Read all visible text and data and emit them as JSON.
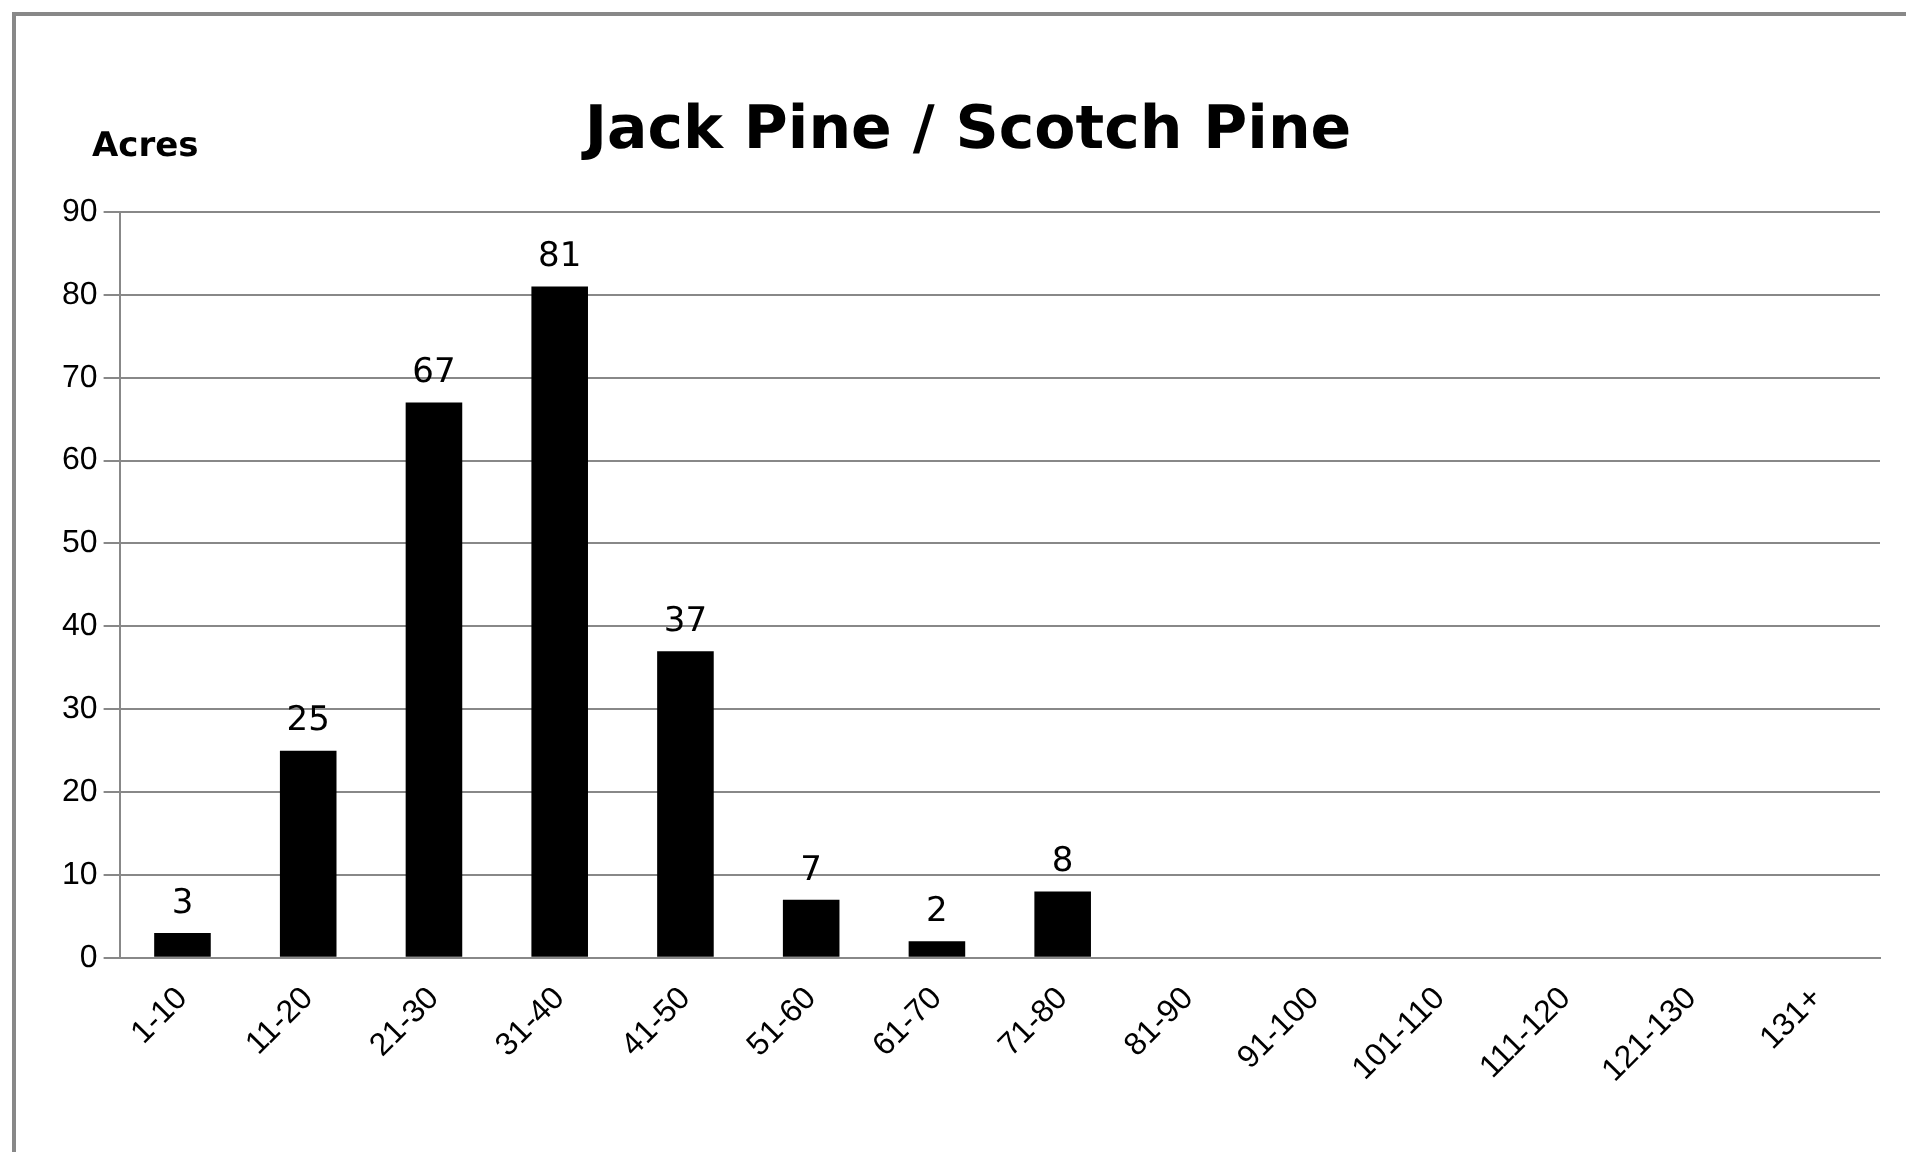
{
  "chart_data": {
    "type": "bar",
    "title": "Jack Pine / Scotch Pine",
    "ylabel": "Acres",
    "categories": [
      "1-10",
      "11-20",
      "21-30",
      "31-40",
      "41-50",
      "51-60",
      "61-70",
      "71-80",
      "81-90",
      "91-100",
      "101-110",
      "111-120",
      "121-130",
      "131+"
    ],
    "values": [
      3,
      25,
      67,
      81,
      37,
      7,
      2,
      8,
      0,
      0,
      0,
      0,
      0,
      0
    ],
    "value_labels": [
      "3",
      "25",
      "67",
      "81",
      "37",
      "7",
      "2",
      "8",
      null,
      null,
      null,
      null,
      null,
      null
    ],
    "color": "#000000",
    "ylim": [
      0,
      90
    ],
    "yticks": [
      0,
      10,
      20,
      30,
      40,
      50,
      60,
      70,
      80,
      90
    ],
    "grid": "y",
    "legend": false
  }
}
